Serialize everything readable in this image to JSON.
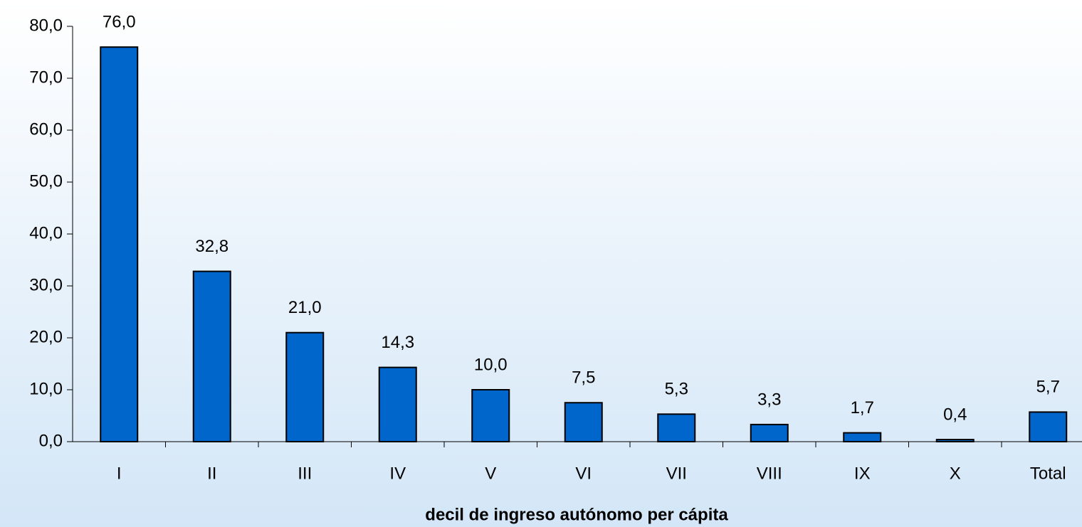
{
  "chart_data": {
    "type": "bar",
    "x_label": "decil de ingreso autónomo per cápita",
    "categories": [
      "I",
      "II",
      "III",
      "IV",
      "V",
      "VI",
      "VII",
      "VIII",
      "IX",
      "X",
      "Total"
    ],
    "values": [
      76.0,
      32.8,
      21.0,
      14.3,
      10.0,
      7.5,
      5.3,
      3.3,
      1.7,
      0.4,
      5.7
    ],
    "value_labels": [
      "76,0",
      "32,8",
      "21,0",
      "14,3",
      "10,0",
      "7,5",
      "5,3",
      "3,3",
      "1,7",
      "0,4",
      "5,7"
    ],
    "color": "#0066cc",
    "ylim": [
      0,
      80
    ],
    "yticks": [
      {
        "value": 0,
        "label": "0,0"
      },
      {
        "value": 10,
        "label": "10,0"
      },
      {
        "value": 20,
        "label": "20,0"
      },
      {
        "value": 30,
        "label": "30,0"
      },
      {
        "value": 40,
        "label": "40,0"
      },
      {
        "value": 50,
        "label": "50,0"
      },
      {
        "value": 60,
        "label": "60,0"
      },
      {
        "value": 70,
        "label": "70,0"
      },
      {
        "value": 80,
        "label": "80,0"
      }
    ],
    "grid": false
  }
}
